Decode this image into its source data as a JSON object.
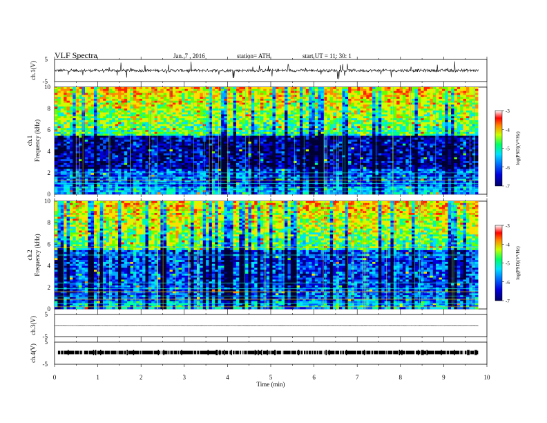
{
  "header": {
    "title": "VLF  Spectra",
    "date": "Jan.  7  , 2016",
    "station": "station= ATH",
    "start": "start  UT  =   11: 30: 1"
  },
  "chart_data": [
    {
      "type": "line",
      "panel": "ch1-waveform",
      "ylabel": "ch.1(V)",
      "yticks": [
        "5",
        "-5"
      ],
      "ylim": [
        -5,
        5
      ],
      "xlim": [
        0,
        10
      ],
      "description_level": 0.0
    },
    {
      "type": "heatmap",
      "panel": "ch1-spectrogram",
      "ylabel": "ch.1\nFrequency  (kHz)",
      "ylabel_lines": [
        "ch.1",
        "Frequency  (kHz)"
      ],
      "ylim": [
        0,
        10
      ],
      "yticks": [
        "0",
        "2",
        "4",
        "6",
        "8",
        "10"
      ],
      "xlim": [
        0,
        9.8
      ],
      "colorbar": {
        "label": "log(PSD)(V²/Hz)",
        "ticks": [
          "-3",
          "-4",
          "-5",
          "-6",
          "-7"
        ],
        "range": [
          -7,
          -3
        ]
      }
    },
    {
      "type": "heatmap",
      "panel": "ch2-spectrogram",
      "ylabel_lines": [
        "ch.2",
        "Frequency  (kHz)"
      ],
      "ylim": [
        0,
        10
      ],
      "yticks": [
        "0",
        "2",
        "4",
        "6",
        "8",
        "10"
      ],
      "xlim": [
        0,
        9.8
      ],
      "colorbar": {
        "label": "log(PSD)(V²/Hz)",
        "ticks": [
          "-3",
          "-4",
          "-5",
          "-6",
          "-7"
        ],
        "range": [
          -7,
          -3
        ]
      }
    },
    {
      "type": "line",
      "panel": "ch3-waveform",
      "ylabel": "ch.3(V)",
      "yticks": [
        "5",
        "-5"
      ],
      "ylim": [
        -5,
        5
      ],
      "xlim": [
        0,
        10
      ]
    },
    {
      "type": "line",
      "panel": "ch4-waveform",
      "ylabel": "ch.4(V)",
      "yticks": [
        "5",
        "-5"
      ],
      "ylim": [
        -5,
        5
      ],
      "xlim": [
        0,
        10
      ]
    }
  ],
  "xaxis": {
    "label": "Time  (min)",
    "ticks": [
      "0",
      "1",
      "2",
      "3",
      "4",
      "5",
      "6",
      "7",
      "8",
      "9",
      "10"
    ]
  }
}
